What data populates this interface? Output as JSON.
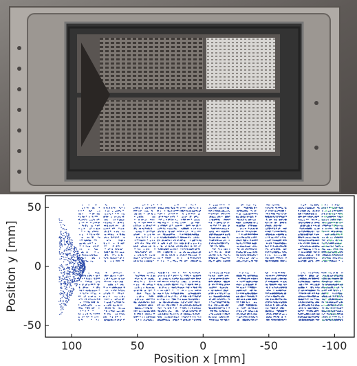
{
  "photo": {
    "description_icon": "detector-photo"
  },
  "plot": {
    "xlabel": "Position x [mm]",
    "ylabel": "Position y [mm]",
    "x_ticks": [
      "100",
      "50",
      "0",
      "-50",
      "-100"
    ],
    "y_ticks": [
      "50",
      "0",
      "-50"
    ],
    "colors": {
      "points": "#2b4aa8",
      "hot": "#5fd08a",
      "frame": "#000000"
    }
  },
  "chart_data": {
    "type": "scatter",
    "title": "",
    "xlabel": "Position x [mm]",
    "ylabel": "Position y [mm]",
    "xlim": [
      120,
      -115
    ],
    "ylim": [
      -60,
      60
    ],
    "x_axis_reversed": true,
    "grid": false,
    "legend": "none",
    "columns_x_centers": [
      87,
      68,
      45,
      27,
      10,
      -12,
      -33,
      -55,
      -80,
      -98
    ],
    "halves_y_range": [
      [
        4,
        52
      ],
      [
        -5,
        -46
      ]
    ],
    "triangle_region": {
      "x_range": [
        110,
        90
      ],
      "y_range": [
        -42,
        42
      ]
    }
  }
}
